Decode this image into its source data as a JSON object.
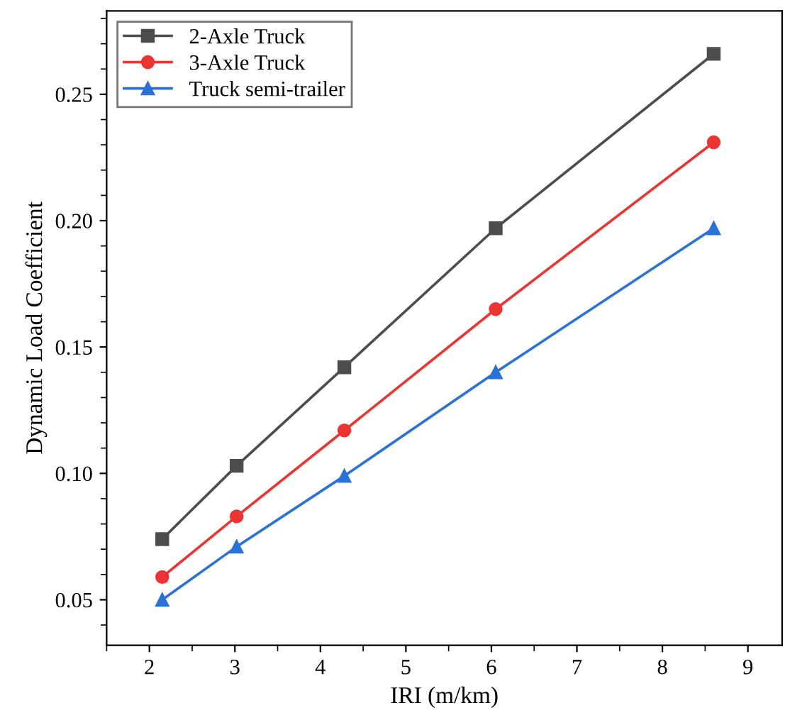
{
  "chart_data": {
    "type": "line",
    "xlabel": "IRI (m/km)",
    "ylabel": "Dynamic Load Coefficient",
    "x": [
      2.15,
      3.02,
      4.28,
      6.05,
      8.6
    ],
    "series": [
      {
        "name": "2-Axle Truck",
        "color": "#4d4d4d",
        "marker": "square",
        "values": [
          0.074,
          0.103,
          0.142,
          0.197,
          0.266
        ]
      },
      {
        "name": "3-Axle Truck",
        "color": "#ee3333",
        "marker": "circle",
        "values": [
          0.059,
          0.083,
          0.117,
          0.165,
          0.231
        ]
      },
      {
        "name": "Truck semi-trailer",
        "color": "#2a72d8",
        "marker": "triangle",
        "values": [
          0.05,
          0.071,
          0.099,
          0.14,
          0.197
        ]
      }
    ],
    "xlim": [
      1.5,
      9.4
    ],
    "xticks": [
      2,
      3,
      4,
      5,
      6,
      7,
      8,
      9
    ],
    "ylim": [
      0.032,
      0.283
    ],
    "yticks": [
      0.05,
      {
        "value": 0.1,
        "label": "0.10"
      },
      0.15,
      {
        "value": 0.2,
        "label": "0.20"
      },
      0.25
    ],
    "legend": "top left",
    "grid": false,
    "line_style": "solid"
  }
}
